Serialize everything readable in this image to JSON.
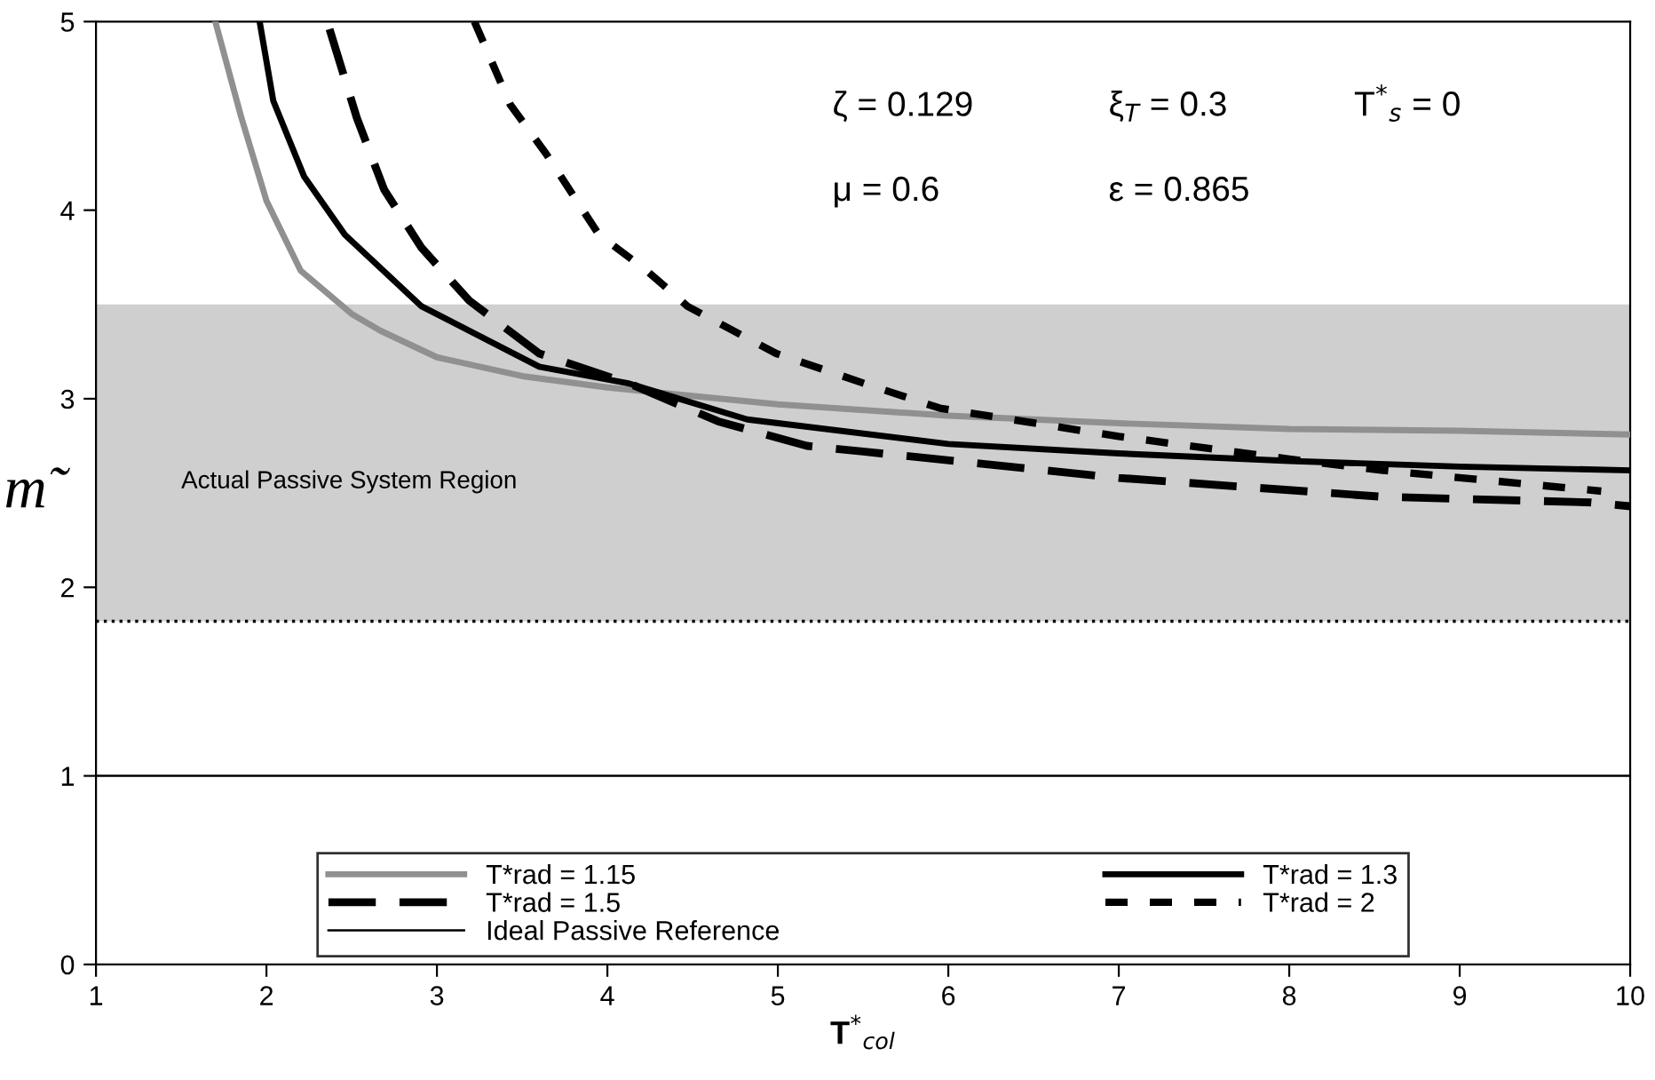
{
  "chart_data": {
    "type": "line",
    "xlabel": "T$^{*}$$_{col}$",
    "ylabel": "m̃",
    "xlim": [
      1,
      10
    ],
    "xticks": [
      1,
      2,
      3,
      4,
      5,
      6,
      7,
      8,
      9,
      10
    ],
    "ylim": [
      0,
      5
    ],
    "yticks": [
      0,
      1,
      2,
      3,
      4,
      5
    ],
    "grid": false,
    "legend": "bottom",
    "marker": "none",
    "series": [
      {
        "name": "T*rad = 1.15",
        "color": "#909090",
        "line_style": "solid",
        "x": [
          1.7,
          1.85,
          2.0,
          2.2,
          2.5,
          2.67,
          3,
          3.5,
          4,
          5,
          6,
          7,
          8,
          9,
          10
        ],
        "values": [
          5,
          4.5,
          4.05,
          3.68,
          3.45,
          3.36,
          3.22,
          3.12,
          3.06,
          2.97,
          2.91,
          2.87,
          2.84,
          2.83,
          2.81
        ]
      },
      {
        "name": "T*rad = 1.3",
        "color": "#000000",
        "line_style": "solid",
        "x": [
          1.96,
          2.04,
          2.22,
          2.46,
          2.91,
          3.6,
          4.13,
          4.82,
          6,
          7,
          8,
          9,
          10
        ],
        "values": [
          5,
          4.58,
          4.18,
          3.87,
          3.49,
          3.17,
          3.08,
          2.89,
          2.76,
          2.71,
          2.67,
          2.64,
          2.62
        ]
      },
      {
        "name": "T*rad = 1.5",
        "color": "#000000",
        "line_style": "dashed",
        "x": [
          2.37,
          2.53,
          2.69,
          2.91,
          3.19,
          3.6,
          4.13,
          4.65,
          5.17,
          5.5,
          7,
          8.55,
          9.77,
          10
        ],
        "values": [
          4.96,
          4.49,
          4.11,
          3.8,
          3.52,
          3.24,
          3.08,
          2.88,
          2.75,
          2.72,
          2.58,
          2.48,
          2.45,
          2.43
        ]
      },
      {
        "name": "T*rad = 2",
        "color": "#000000",
        "line_style": "dotted",
        "x": [
          3.22,
          3.43,
          3.64,
          3.95,
          4.23,
          4.47,
          4.99,
          5.51,
          5.95,
          7,
          8,
          8.55,
          9.83
        ],
        "values": [
          5,
          4.56,
          4.3,
          3.87,
          3.68,
          3.49,
          3.24,
          3.08,
          2.95,
          2.8,
          2.68,
          2.62,
          2.51
        ]
      }
    ],
    "ref_lines": [
      {
        "axis": "y",
        "value": 1,
        "label": "Ideal Passive Reference",
        "color": "#000000",
        "line_style": "solid"
      },
      {
        "axis": "y",
        "value": 1.82,
        "color": "#000000",
        "line_style": "dotted"
      }
    ],
    "bands": [
      {
        "axis": "y",
        "from": 1.82,
        "to": 3.5,
        "label": "Actual Passive System Region",
        "color": "#cfcfcf"
      }
    ],
    "annotations": [
      "ζ = 0.129",
      "ξ$_{T}$ = 0.3",
      "T$^{*}$$_{s}$ = 0",
      "μ = 0.6",
      "ε = 0.865"
    ]
  }
}
